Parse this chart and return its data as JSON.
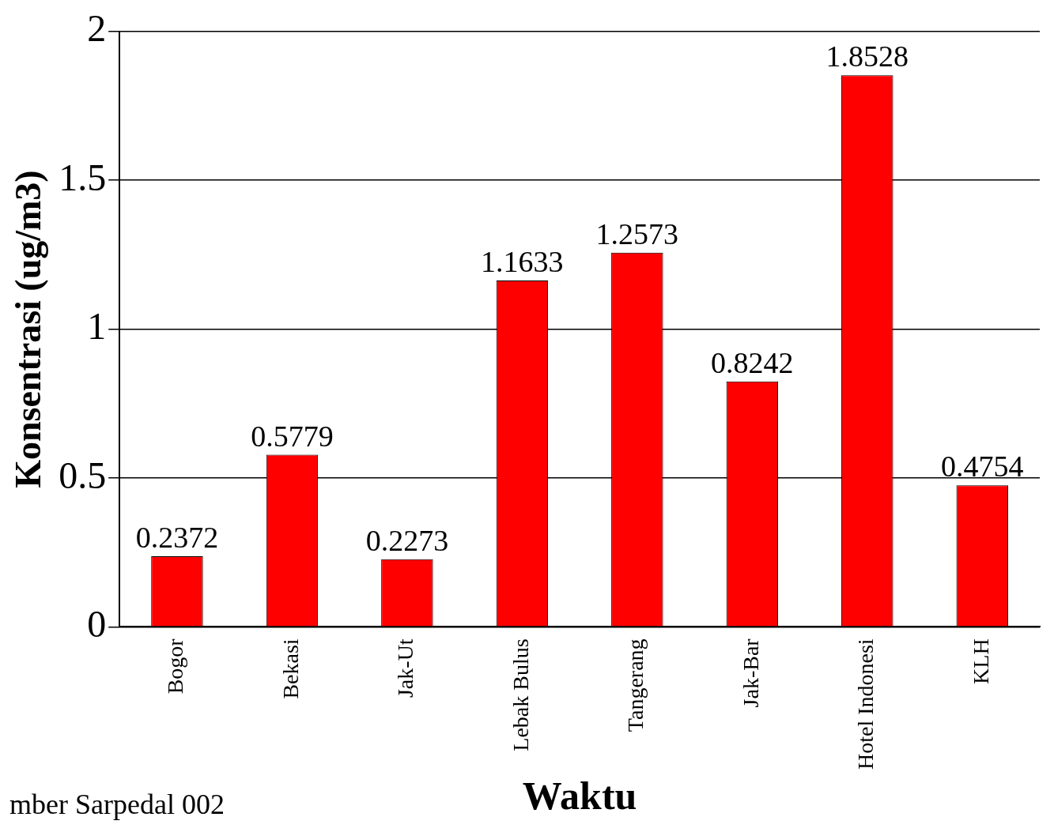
{
  "chart_data": {
    "type": "bar",
    "xlabel": "Waktu",
    "ylabel": "Konsentrasi (ug/m3)",
    "categories": [
      "Bogor",
      "Bekasi",
      "Jak-Ut",
      "Lebak Bulus",
      "Tangerang",
      "Jak-Bar",
      "Hotel Indonesi",
      "KLH"
    ],
    "values": [
      0.2372,
      0.5779,
      0.2273,
      1.1633,
      1.2573,
      0.8242,
      1.8528,
      0.4754
    ],
    "color": "#ff0000",
    "ylim": [
      0,
      2
    ],
    "yticks": [
      0,
      0.5,
      1,
      1.5,
      2
    ],
    "grid": "y",
    "legend": false,
    "data_labels": true,
    "annotations": [
      "mber Sarpedal 002"
    ]
  }
}
